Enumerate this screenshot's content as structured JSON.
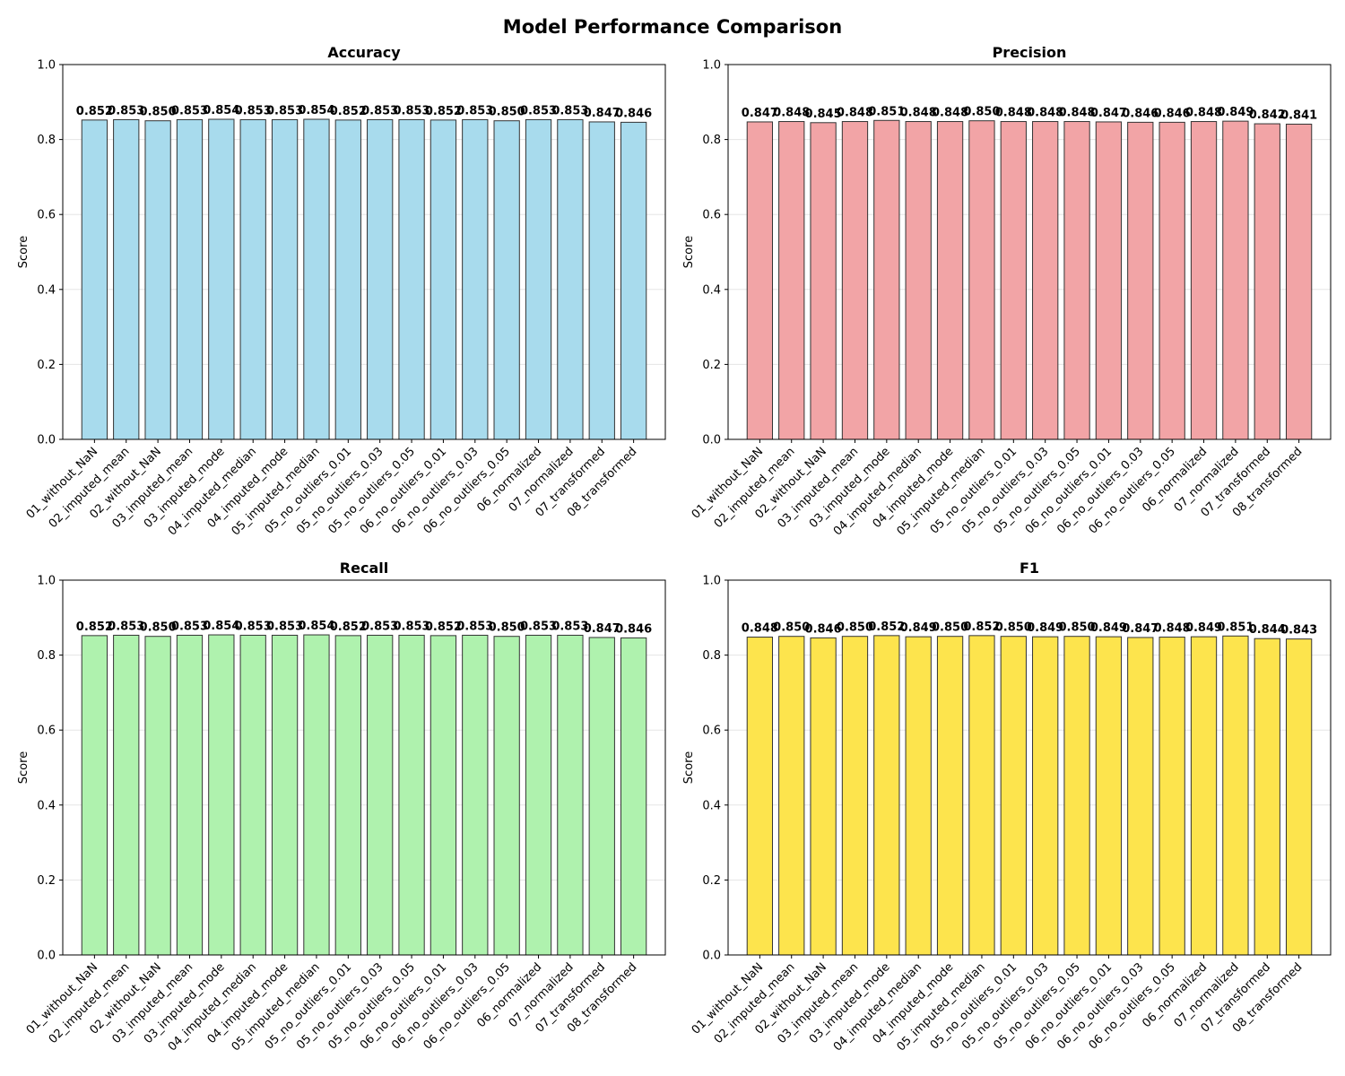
{
  "title": "Model Performance Comparison",
  "chart_data": [
    {
      "type": "bar",
      "title": "Accuracy",
      "xlabel": "",
      "ylabel": "Score",
      "ylim": [
        0,
        1
      ],
      "yticks": [
        "0.0",
        "0.2",
        "0.4",
        "0.6",
        "0.8",
        "1.0"
      ],
      "grid": "y",
      "color": "#a8dbed",
      "categories": [
        "01_without_NaN",
        "02_imputed_mean",
        "02_without_NaN",
        "03_imputed_mean",
        "03_imputed_mode",
        "04_imputed_median",
        "04_imputed_mode",
        "05_imputed_median",
        "05_no_outliers_0.01",
        "05_no_outliers_0.03",
        "05_no_outliers_0.05",
        "06_no_outliers_0.01",
        "06_no_outliers_0.03",
        "06_no_outliers_0.05",
        "06_normalized",
        "07_normalized",
        "07_transformed",
        "08_transformed"
      ],
      "values": [
        0.852,
        0.853,
        0.85,
        0.853,
        0.854,
        0.853,
        0.853,
        0.854,
        0.852,
        0.853,
        0.853,
        0.852,
        0.853,
        0.85,
        0.853,
        0.853,
        0.847,
        0.846
      ],
      "labels": [
        "0.852",
        "0.853",
        "0.850",
        "0.853",
        "0.854",
        "0.853",
        "0.853",
        "0.854",
        "0.852",
        "0.853",
        "0.853",
        "0.852",
        "0.853",
        "0.850",
        "0.853",
        "0.853",
        "0.847",
        "0.846"
      ]
    },
    {
      "type": "bar",
      "title": "Precision",
      "xlabel": "",
      "ylabel": "Score",
      "ylim": [
        0,
        1
      ],
      "yticks": [
        "0.0",
        "0.2",
        "0.4",
        "0.6",
        "0.8",
        "1.0"
      ],
      "grid": "y",
      "color": "#f2a4a6",
      "categories": [
        "01_without_NaN",
        "02_imputed_mean",
        "02_without_NaN",
        "03_imputed_mean",
        "03_imputed_mode",
        "04_imputed_median",
        "04_imputed_mode",
        "05_imputed_median",
        "05_no_outliers_0.01",
        "05_no_outliers_0.03",
        "05_no_outliers_0.05",
        "06_no_outliers_0.01",
        "06_no_outliers_0.03",
        "06_no_outliers_0.05",
        "06_normalized",
        "07_normalized",
        "07_transformed",
        "08_transformed"
      ],
      "values": [
        0.847,
        0.848,
        0.845,
        0.848,
        0.851,
        0.848,
        0.848,
        0.85,
        0.848,
        0.848,
        0.848,
        0.847,
        0.846,
        0.846,
        0.848,
        0.849,
        0.842,
        0.841
      ],
      "labels": [
        "0.847",
        "0.848",
        "0.845",
        "0.848",
        "0.851",
        "0.848",
        "0.848",
        "0.850",
        "0.848",
        "0.848",
        "0.848",
        "0.847",
        "0.846",
        "0.846",
        "0.848",
        "0.849",
        "0.842",
        "0.841"
      ]
    },
    {
      "type": "bar",
      "title": "Recall",
      "xlabel": "",
      "ylabel": "Score",
      "ylim": [
        0,
        1
      ],
      "yticks": [
        "0.0",
        "0.2",
        "0.4",
        "0.6",
        "0.8",
        "1.0"
      ],
      "grid": "y",
      "color": "#aff2ae",
      "categories": [
        "01_without_NaN",
        "02_imputed_mean",
        "02_without_NaN",
        "03_imputed_mean",
        "03_imputed_mode",
        "04_imputed_median",
        "04_imputed_mode",
        "05_imputed_median",
        "05_no_outliers_0.01",
        "05_no_outliers_0.03",
        "05_no_outliers_0.05",
        "06_no_outliers_0.01",
        "06_no_outliers_0.03",
        "06_no_outliers_0.05",
        "06_normalized",
        "07_normalized",
        "07_transformed",
        "08_transformed"
      ],
      "values": [
        0.852,
        0.853,
        0.85,
        0.853,
        0.854,
        0.853,
        0.853,
        0.854,
        0.852,
        0.853,
        0.853,
        0.852,
        0.853,
        0.85,
        0.853,
        0.853,
        0.847,
        0.846
      ],
      "labels": [
        "0.852",
        "0.853",
        "0.850",
        "0.853",
        "0.854",
        "0.853",
        "0.853",
        "0.854",
        "0.852",
        "0.853",
        "0.853",
        "0.852",
        "0.853",
        "0.850",
        "0.853",
        "0.853",
        "0.847",
        "0.846"
      ]
    },
    {
      "type": "bar",
      "title": "F1",
      "xlabel": "",
      "ylabel": "Score",
      "ylim": [
        0,
        1
      ],
      "yticks": [
        "0.0",
        "0.2",
        "0.4",
        "0.6",
        "0.8",
        "1.0"
      ],
      "grid": "y",
      "color": "#fde44d",
      "categories": [
        "01_without_NaN",
        "02_imputed_mean",
        "02_without_NaN",
        "03_imputed_mean",
        "03_imputed_mode",
        "04_imputed_median",
        "04_imputed_mode",
        "05_imputed_median",
        "05_no_outliers_0.01",
        "05_no_outliers_0.03",
        "05_no_outliers_0.05",
        "06_no_outliers_0.01",
        "06_no_outliers_0.03",
        "06_no_outliers_0.05",
        "06_normalized",
        "07_normalized",
        "07_transformed",
        "08_transformed"
      ],
      "values": [
        0.848,
        0.85,
        0.846,
        0.85,
        0.852,
        0.849,
        0.85,
        0.852,
        0.85,
        0.849,
        0.85,
        0.849,
        0.847,
        0.848,
        0.849,
        0.851,
        0.844,
        0.843
      ],
      "labels": [
        "0.848",
        "0.850",
        "0.846",
        "0.850",
        "0.852",
        "0.849",
        "0.850",
        "0.852",
        "0.850",
        "0.849",
        "0.850",
        "0.849",
        "0.847",
        "0.848",
        "0.849",
        "0.851",
        "0.844",
        "0.843"
      ]
    }
  ]
}
